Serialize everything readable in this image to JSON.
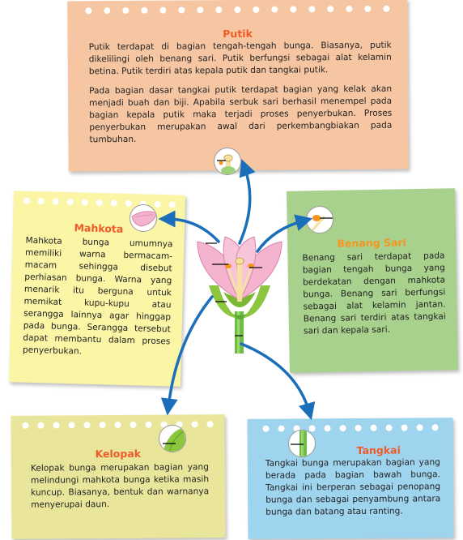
{
  "colors": {
    "putik_card": "#f6c6a3",
    "putik_title": "#f05a28",
    "mahkota_card": "#fbf5a6",
    "mahkota_title": "#f05a28",
    "benang_card": "#a9d18e",
    "benang_title": "#f7941d",
    "kelopak_card": "#e9e69b",
    "kelopak_title": "#f05a28",
    "tangkai_card": "#9fd4ee",
    "tangkai_title": "#f05a28",
    "arrow": "#1b6fba"
  },
  "putik": {
    "title": "Putik",
    "p1": "Putik terdapat di bagian tengah-tengah bunga. Biasanya, putik dikelilingi oleh benang sari. Putik berfungsi sebagai alat kelamin betina. Putik terdiri atas kepala putik dan tangkai putik.",
    "p2": "Pada bagian dasar tangkai putik terdapat bagian yang kelak akan menjadi buah dan biji. Apabila serbuk sari berhasil menempel pada bagian kepala putik maka terjadi proses penyerbukan. Proses penyerbukan merupakan awal dari perkembangbiakan pada tumbuhan."
  },
  "mahkota": {
    "title": "Mahkota",
    "text": "Mahkota bunga umumnya memiliki warna bermacam-macam sehingga disebut perhiasan bunga. Warna yang menarik itu berguna untuk memikat kupu-kupu atau serangga lainnya agar hinggap pada bunga. Serangga tersebut dapat membantu dalam proses penyerbukan."
  },
  "benang_sari": {
    "title": "Benang Sari",
    "text": "Benang sari terdapat pada bagian tengah bunga yang berdekatan dengan mahkota bunga. Benang sari berfungsi sebagai alat kelamin jantan. Benang sari terdiri atas tangkai sari dan kepala sari."
  },
  "kelopak": {
    "title": "Kelopak",
    "text": "Kelopak bunga merupakan bagian yang melindungi mahkota bunga ketika masih kuncup. Biasanya, bentuk dan warnanya menyerupai daun."
  },
  "tangkai": {
    "title": "Tangkai",
    "text": "Tangkai bunga merupakan bagian yang berada pada bagian bawah bunga. Tangkai ini berperan sebagai penopang bunga dan sebagai penyambung antara bunga dan batang atau ranting."
  },
  "icons": [
    "flower-icon",
    "pistil-thumb-icon",
    "petal-thumb-icon",
    "stamen-thumb-icon",
    "sepal-thumb-icon",
    "stem-thumb-icon"
  ]
}
